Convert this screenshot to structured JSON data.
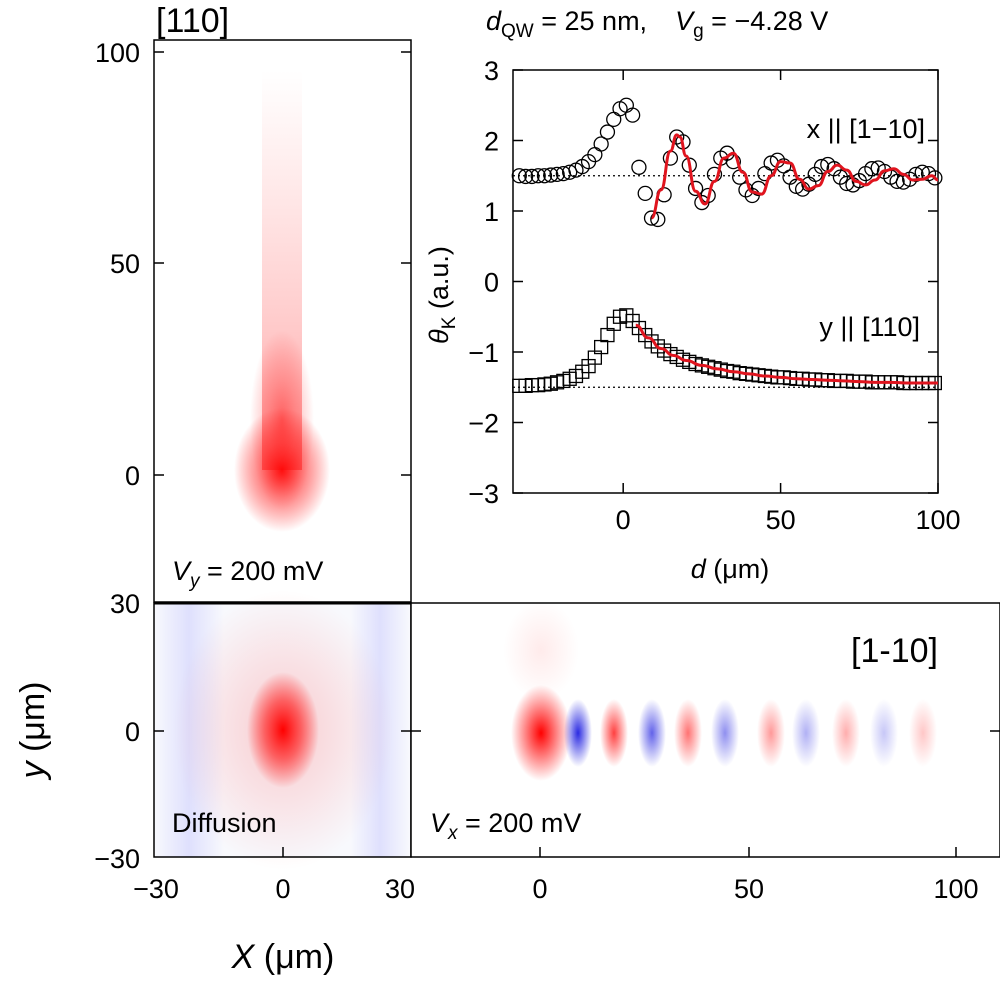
{
  "header": {
    "d_qw_label": "d",
    "d_qw_sub": "QW",
    "d_qw_value": " = 25 nm,",
    "vg_label": "V",
    "vg_sub": "g",
    "vg_value": " = −4.28 V"
  },
  "panels": {
    "top_left": {
      "direction": "[110]",
      "voltage_var": "V",
      "voltage_sub": "y",
      "voltage_value": " = 200 mV",
      "y_ticks": [
        "100",
        "50",
        "0"
      ]
    },
    "bottom_left": {
      "label": "Diffusion",
      "x_ticks": [
        "−30",
        "0",
        "30"
      ],
      "y_ticks": [
        "30",
        "0",
        "−30"
      ],
      "xlabel_var": "X",
      "xlabel_unit": " (μm)",
      "ylabel_var": "y",
      "ylabel_unit": " (μm)"
    },
    "bottom_right": {
      "direction": "[1-10]",
      "voltage_var": "V",
      "voltage_sub": "x",
      "voltage_value": " = 200 mV",
      "x_ticks": [
        "0",
        "50",
        "100"
      ]
    }
  },
  "colors": {
    "positive": "#ff0000",
    "negative": "#1f1fe0",
    "fit_line": "#e0141e",
    "marker": "#000000"
  },
  "chart_data": {
    "type": "scatter",
    "title": "",
    "xlabel_var": "d",
    "xlabel_unit": " (μm)",
    "ylabel_var": "θ",
    "ylabel_sub": "K",
    "ylabel_unit": " (a.u.)",
    "xlim": [
      -35,
      100
    ],
    "ylim": [
      -3,
      3
    ],
    "x_ticks": [
      "0",
      "50",
      "100"
    ],
    "y_ticks": [
      "3",
      "2",
      "1",
      "0",
      "−1",
      "−2",
      "−3"
    ],
    "x_tick_values": [
      0,
      50,
      100
    ],
    "y_tick_values": [
      3,
      2,
      1,
      0,
      -1,
      -2,
      -3
    ],
    "series": [
      {
        "name": "x || [1−10]",
        "marker": "circle",
        "baseline": 1.5,
        "x": [
          -33,
          -31,
          -29,
          -27,
          -25,
          -23,
          -21,
          -19,
          -17,
          -15,
          -13,
          -11,
          -9,
          -7,
          -5,
          -3,
          -1,
          1,
          3,
          5,
          7,
          9,
          11,
          13,
          15,
          17,
          19,
          21,
          23,
          25,
          27,
          29,
          31,
          33,
          35,
          37,
          39,
          41,
          43,
          45,
          47,
          49,
          51,
          53,
          55,
          57,
          59,
          61,
          63,
          65,
          67,
          69,
          71,
          73,
          75,
          77,
          79,
          81,
          83,
          85,
          87,
          89,
          91,
          93,
          95,
          97,
          99
        ],
        "y": [
          1.5,
          1.49,
          1.49,
          1.5,
          1.5,
          1.51,
          1.52,
          1.53,
          1.55,
          1.58,
          1.63,
          1.7,
          1.8,
          1.95,
          2.12,
          2.3,
          2.45,
          2.5,
          2.36,
          1.62,
          1.25,
          0.9,
          0.88,
          1.23,
          1.75,
          2.05,
          1.98,
          1.65,
          1.32,
          1.12,
          1.22,
          1.52,
          1.75,
          1.82,
          1.7,
          1.48,
          1.3,
          1.22,
          1.32,
          1.53,
          1.68,
          1.72,
          1.64,
          1.48,
          1.35,
          1.31,
          1.38,
          1.52,
          1.63,
          1.66,
          1.6,
          1.48,
          1.39,
          1.37,
          1.43,
          1.53,
          1.6,
          1.61,
          1.56,
          1.48,
          1.42,
          1.41,
          1.45,
          1.52,
          1.55,
          1.53,
          1.47
        ]
      },
      {
        "name": "y || [110]",
        "marker": "square",
        "baseline": -1.5,
        "x": [
          -33,
          -31,
          -29,
          -27,
          -25,
          -23,
          -21,
          -19,
          -17,
          -15,
          -13,
          -11,
          -9,
          -7,
          -5,
          -3,
          -1,
          1,
          3,
          5,
          7,
          9,
          11,
          13,
          15,
          17,
          19,
          21,
          23,
          25,
          27,
          29,
          31,
          33,
          35,
          37,
          39,
          41,
          43,
          45,
          47,
          49,
          51,
          53,
          55,
          57,
          59,
          61,
          63,
          65,
          67,
          69,
          71,
          73,
          75,
          77,
          79,
          81,
          83,
          85,
          87,
          89,
          91,
          93,
          95,
          97,
          99
        ],
        "y": [
          -1.48,
          -1.48,
          -1.47,
          -1.47,
          -1.46,
          -1.45,
          -1.43,
          -1.41,
          -1.38,
          -1.34,
          -1.28,
          -1.2,
          -1.08,
          -0.93,
          -0.76,
          -0.6,
          -0.5,
          -0.48,
          -0.56,
          -0.66,
          -0.76,
          -0.85,
          -0.92,
          -0.98,
          -1.03,
          -1.07,
          -1.11,
          -1.14,
          -1.17,
          -1.19,
          -1.21,
          -1.23,
          -1.25,
          -1.27,
          -1.28,
          -1.3,
          -1.31,
          -1.32,
          -1.33,
          -1.34,
          -1.35,
          -1.36,
          -1.36,
          -1.37,
          -1.38,
          -1.38,
          -1.39,
          -1.39,
          -1.4,
          -1.4,
          -1.41,
          -1.41,
          -1.41,
          -1.42,
          -1.42,
          -1.42,
          -1.43,
          -1.43,
          -1.43,
          -1.43,
          -1.43,
          -1.44,
          -1.44,
          -1.44,
          -1.44,
          -1.44,
          -1.44
        ]
      }
    ],
    "fits": [
      {
        "series": "x || [1−10]",
        "x": [
          9,
          12,
          15,
          17,
          18,
          20,
          23,
          26,
          29,
          32,
          35,
          38,
          41,
          44,
          47,
          50,
          53,
          56,
          59,
          62,
          65,
          68,
          71,
          74,
          77,
          80,
          83,
          86,
          89,
          92,
          95,
          98,
          100
        ],
        "y": [
          0.9,
          1.3,
          1.85,
          2.08,
          2.05,
          1.78,
          1.28,
          1.1,
          1.42,
          1.75,
          1.82,
          1.55,
          1.27,
          1.24,
          1.5,
          1.7,
          1.68,
          1.45,
          1.31,
          1.36,
          1.56,
          1.65,
          1.58,
          1.42,
          1.37,
          1.44,
          1.57,
          1.6,
          1.52,
          1.44,
          1.45,
          1.5,
          1.44
        ]
      },
      {
        "series": "y || [110]",
        "x": [
          4,
          8,
          12,
          16,
          20,
          25,
          30,
          35,
          40,
          45,
          50,
          55,
          60,
          65,
          70,
          75,
          80,
          85,
          90,
          95,
          100
        ],
        "y": [
          -0.62,
          -0.8,
          -0.95,
          -1.05,
          -1.12,
          -1.19,
          -1.24,
          -1.28,
          -1.31,
          -1.34,
          -1.36,
          -1.38,
          -1.39,
          -1.4,
          -1.41,
          -1.42,
          -1.43,
          -1.43,
          -1.44,
          -1.44,
          -1.44
        ]
      }
    ]
  }
}
